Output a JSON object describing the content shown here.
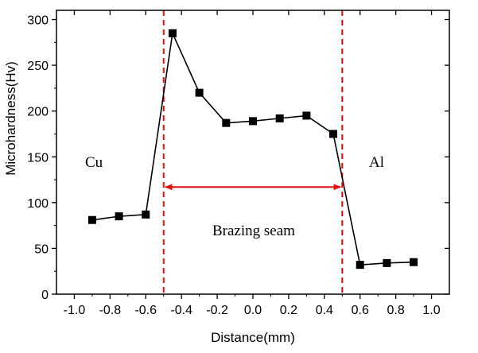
{
  "chart_data": {
    "type": "line",
    "title": "",
    "xlabel": "Distance(mm)",
    "ylabel": "Microhardness(Hv)",
    "xlim": [
      -1.1,
      1.1
    ],
    "ylim": [
      0,
      310
    ],
    "x_ticks": [
      -1.0,
      -0.8,
      -0.6,
      -0.4,
      -0.2,
      0.0,
      0.2,
      0.4,
      0.6,
      0.8,
      1.0
    ],
    "x_tick_labels": [
      "-1.0",
      "-0.8",
      "-0.6",
      "-0.4",
      "-0.2",
      "0.0",
      "0.2",
      "0.4",
      "0.6",
      "0.8",
      "1.0"
    ],
    "y_ticks": [
      0,
      50,
      100,
      150,
      200,
      250,
      300
    ],
    "y_tick_labels": [
      "0",
      "50",
      "100",
      "150",
      "200",
      "250",
      "300"
    ],
    "grid": false,
    "series": [
      {
        "x": [
          -0.9,
          -0.75,
          -0.6,
          -0.45,
          -0.3,
          -0.15,
          0.0,
          0.15,
          0.3,
          0.45,
          0.6,
          0.75,
          0.9
        ],
        "y": [
          81,
          85,
          87,
          285,
          220,
          187,
          189,
          192,
          195,
          175,
          32,
          34,
          35
        ],
        "color": "#000000",
        "marker": "square"
      }
    ],
    "vertical_lines": [
      {
        "x": -0.5,
        "color": "#e01010",
        "style": "dashed"
      },
      {
        "x": 0.5,
        "color": "#e01010",
        "style": "dashed"
      }
    ],
    "annotations": {
      "cu_label": "Cu",
      "al_label": "Al",
      "seam_label": "Brazing seam",
      "arrow": {
        "x1": -0.5,
        "x2": 0.5,
        "y": 117,
        "color": "#e01010"
      }
    }
  }
}
